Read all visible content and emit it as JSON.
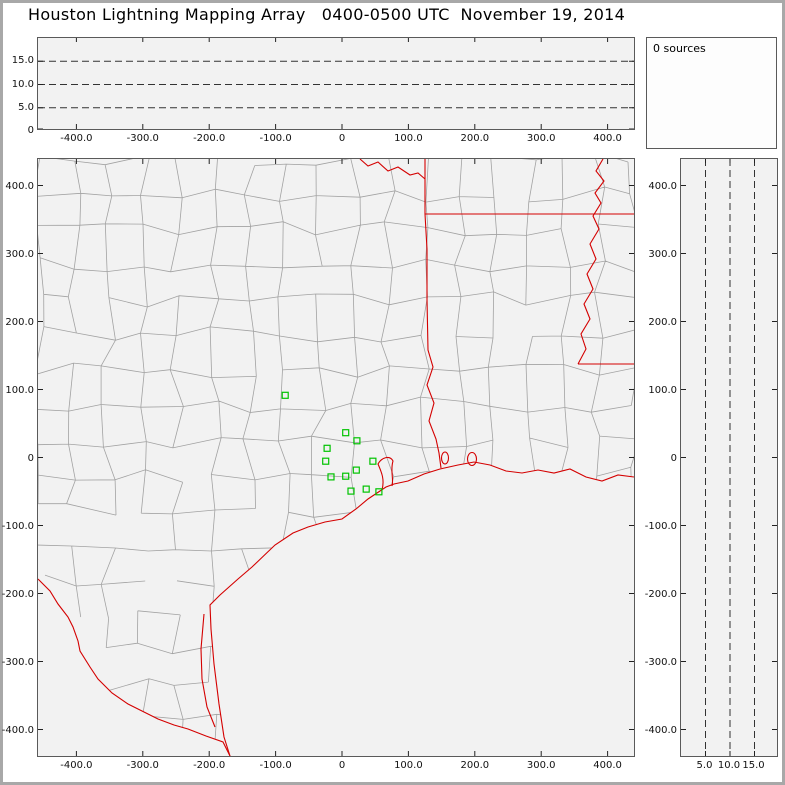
{
  "window": {
    "title": "Houston Lightning Mapping Array   0400-0500 UTC  November 19, 2014"
  },
  "sources_panel": {
    "label": "0 sources"
  },
  "axes": {
    "distance_labels": [
      "-400.0",
      "-300.0",
      "-200.0",
      "-100.0",
      "0",
      "100.0",
      "200.0",
      "300.0",
      "400.0"
    ],
    "ns_labels": [
      "400.0",
      "300.0",
      "200.0",
      "100.0",
      "0",
      "-100.0",
      "-200.0",
      "-300.0",
      "-400.0"
    ],
    "altitude_labels_top": [
      "15.0",
      "10.0",
      "5.0",
      "0"
    ],
    "altitude_labels_right": [
      "5.0",
      "10.0",
      "15.0"
    ]
  },
  "colors": {
    "panel_bg": "#f2f2f2",
    "county_line": "#a2a2a2",
    "state_border": "#d40000",
    "station_marker": "#00c300",
    "dashed_line": "#333333",
    "tick": "#222222"
  },
  "chart_data": [
    {
      "type": "scatter",
      "panel": "altitude-vs-east-west",
      "xlim": [
        -450,
        450
      ],
      "ylim": [
        0,
        20
      ],
      "x_ticks": [
        -400,
        -300,
        -200,
        -100,
        0,
        100,
        200,
        300,
        400
      ],
      "y_gridlines_km": [
        5,
        10,
        15
      ],
      "points": [],
      "source_count": 0
    },
    {
      "type": "scatter",
      "panel": "plan-view-map",
      "xlim": [
        -450,
        450
      ],
      "ylim": [
        -450,
        450
      ],
      "x_ticks": [
        -400,
        -300,
        -200,
        -100,
        0,
        100,
        200,
        300,
        400
      ],
      "y_ticks": [
        -400,
        -300,
        -200,
        -100,
        0,
        100,
        200,
        300,
        400
      ],
      "points": [],
      "station_markers_km": [
        [
          -87,
          93
        ],
        [
          4,
          38
        ],
        [
          -24,
          15
        ],
        [
          21,
          26
        ],
        [
          -26,
          -4
        ],
        [
          20,
          -17
        ],
        [
          45,
          -4
        ],
        [
          -18,
          -27
        ],
        [
          4,
          -26
        ],
        [
          12,
          -48
        ],
        [
          35,
          -45
        ],
        [
          54,
          -49
        ]
      ]
    },
    {
      "type": "scatter",
      "panel": "altitude-vs-north-south",
      "xlim": [
        0,
        20
      ],
      "ylim": [
        -450,
        450
      ],
      "x_gridlines_km": [
        5,
        10,
        15
      ],
      "y_ticks": [
        -400,
        -300,
        -200,
        -100,
        0,
        100,
        200,
        300,
        400
      ],
      "points": [],
      "source_count": 0
    }
  ]
}
